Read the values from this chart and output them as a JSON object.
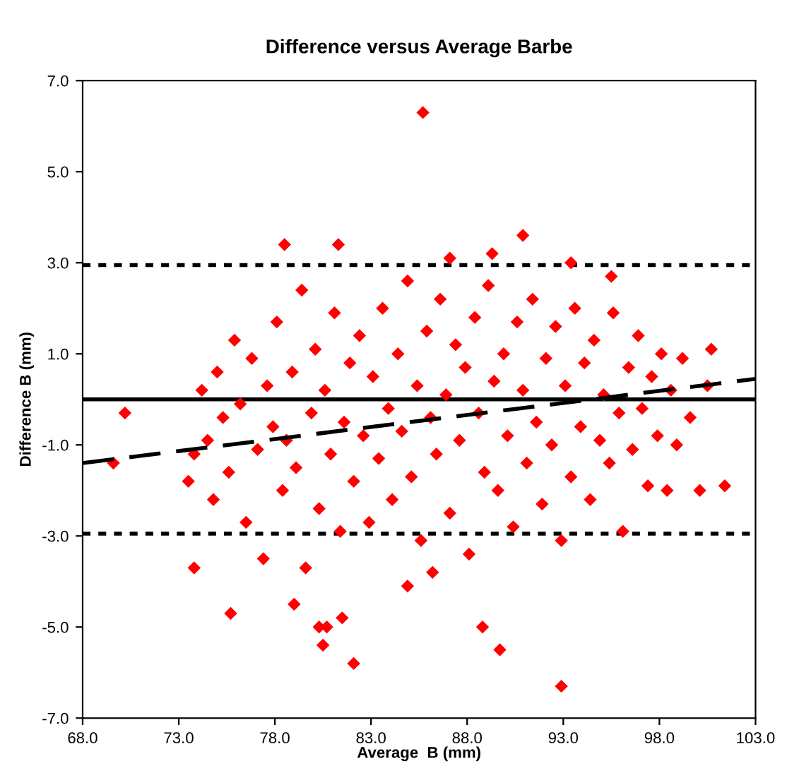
{
  "chart_data": {
    "type": "scatter",
    "title": "Difference versus Average Barbe",
    "xlabel": "Average  B (mm)",
    "ylabel": "Difference B (mm)",
    "xlim": [
      68,
      103
    ],
    "ylim": [
      -7,
      7
    ],
    "xticks": [
      {
        "value": 68,
        "label": "68.0"
      },
      {
        "value": 73,
        "label": "73.0"
      },
      {
        "value": 78,
        "label": "78.0"
      },
      {
        "value": 83,
        "label": "83.0"
      },
      {
        "value": 88,
        "label": "88.0"
      },
      {
        "value": 93,
        "label": "93.0"
      },
      {
        "value": 98,
        "label": "98.0"
      },
      {
        "value": 103,
        "label": "103.0"
      }
    ],
    "yticks": [
      {
        "value": -7,
        "label": "-7.0"
      },
      {
        "value": -5,
        "label": "-5.0"
      },
      {
        "value": -3,
        "label": "-3.0"
      },
      {
        "value": -1,
        "label": "-1.0"
      },
      {
        "value": 1,
        "label": "1.0"
      },
      {
        "value": 3,
        "label": "3.0"
      },
      {
        "value": 5,
        "label": "5.0"
      },
      {
        "value": 7,
        "label": "7.0"
      }
    ],
    "grid": false,
    "ref_lines": [
      {
        "axis": "y",
        "value": 0,
        "color": "#000000",
        "line_style": "solid"
      },
      {
        "axis": "y",
        "value": 2.95,
        "color": "#000000",
        "line_style": "dotted"
      },
      {
        "axis": "y",
        "value": -2.95,
        "color": "#000000",
        "line_style": "dotted"
      }
    ],
    "series": [
      {
        "color": "#ff0000",
        "marker": "diamond",
        "x": [
          85.7,
          90.9,
          78.5,
          81.3,
          87.1,
          89.3,
          93.4,
          95.5,
          92.9,
          82.1,
          89.7,
          80.5,
          80.3,
          80.7,
          88.8,
          75.7,
          73.8,
          79.0,
          81.5,
          84.9,
          86.2,
          101.4,
          100.7,
          70.2,
          69.6,
          73.5,
          73.8,
          74.2,
          74.5,
          74.8,
          75.0,
          75.3,
          75.6,
          75.9,
          76.2,
          76.5,
          76.8,
          77.1,
          77.4,
          77.6,
          77.9,
          78.1,
          78.4,
          78.6,
          78.9,
          79.1,
          79.4,
          79.6,
          79.9,
          80.1,
          80.3,
          80.6,
          80.9,
          81.1,
          81.4,
          81.6,
          81.9,
          82.1,
          82.4,
          82.6,
          82.9,
          83.1,
          83.4,
          83.6,
          83.9,
          84.1,
          84.4,
          84.6,
          84.9,
          85.1,
          85.4,
          85.6,
          85.9,
          86.1,
          86.4,
          86.6,
          86.9,
          87.1,
          87.4,
          87.6,
          87.9,
          88.1,
          88.4,
          88.6,
          88.9,
          89.1,
          89.4,
          89.6,
          89.9,
          90.1,
          90.4,
          90.6,
          90.9,
          91.1,
          91.4,
          91.6,
          91.9,
          92.1,
          92.4,
          92.6,
          92.9,
          93.1,
          93.4,
          93.6,
          93.9,
          94.1,
          94.4,
          94.6,
          94.9,
          95.1,
          95.4,
          95.6,
          95.9,
          96.1,
          96.4,
          96.6,
          96.9,
          97.1,
          97.4,
          97.6,
          97.9,
          98.1,
          98.4,
          98.6,
          98.9,
          99.2,
          99.6,
          100.1,
          100.5
        ],
        "values": [
          6.3,
          3.6,
          3.4,
          3.4,
          3.1,
          3.2,
          3.0,
          2.7,
          -6.3,
          -5.8,
          -5.5,
          -5.4,
          -5.0,
          -5.0,
          -5.0,
          -4.7,
          -3.7,
          -4.5,
          -4.8,
          -4.1,
          -3.8,
          -1.9,
          1.1,
          -0.3,
          -1.4,
          -1.8,
          -1.2,
          0.2,
          -0.9,
          -2.2,
          0.6,
          -0.4,
          -1.6,
          1.3,
          -0.1,
          -2.7,
          0.9,
          -1.1,
          -3.5,
          0.3,
          -0.6,
          1.7,
          -2.0,
          -0.9,
          0.6,
          -1.5,
          2.4,
          -3.7,
          -0.3,
          1.1,
          -2.4,
          0.2,
          -1.2,
          1.9,
          -2.9,
          -0.5,
          0.8,
          -1.8,
          1.4,
          -0.8,
          -2.7,
          0.5,
          -1.3,
          2.0,
          -0.2,
          -2.2,
          1.0,
          -0.7,
          2.6,
          -1.7,
          0.3,
          -3.1,
          1.5,
          -0.4,
          -1.2,
          2.2,
          0.1,
          -2.5,
          1.2,
          -0.9,
          0.7,
          -3.4,
          1.8,
          -0.3,
          -1.6,
          2.5,
          0.4,
          -2.0,
          1.0,
          -0.8,
          -2.8,
          1.7,
          0.2,
          -1.4,
          2.2,
          -0.5,
          -2.3,
          0.9,
          -1.0,
          1.6,
          -3.1,
          0.3,
          -1.7,
          2.0,
          -0.6,
          0.8,
          -2.2,
          1.3,
          -0.9,
          0.1,
          -1.4,
          1.9,
          -0.3,
          -2.9,
          0.7,
          -1.1,
          1.4,
          -0.2,
          -1.9,
          0.5,
          -0.8,
          1.0,
          -2.0,
          0.2,
          -1.0,
          0.9,
          -0.4,
          -2.0,
          0.3
        ]
      },
      {
        "type": "line",
        "color": "#000000",
        "marker": "none",
        "line_style": "dashed",
        "x": [
          68,
          103
        ],
        "values": [
          -1.4,
          0.45
        ]
      }
    ]
  }
}
